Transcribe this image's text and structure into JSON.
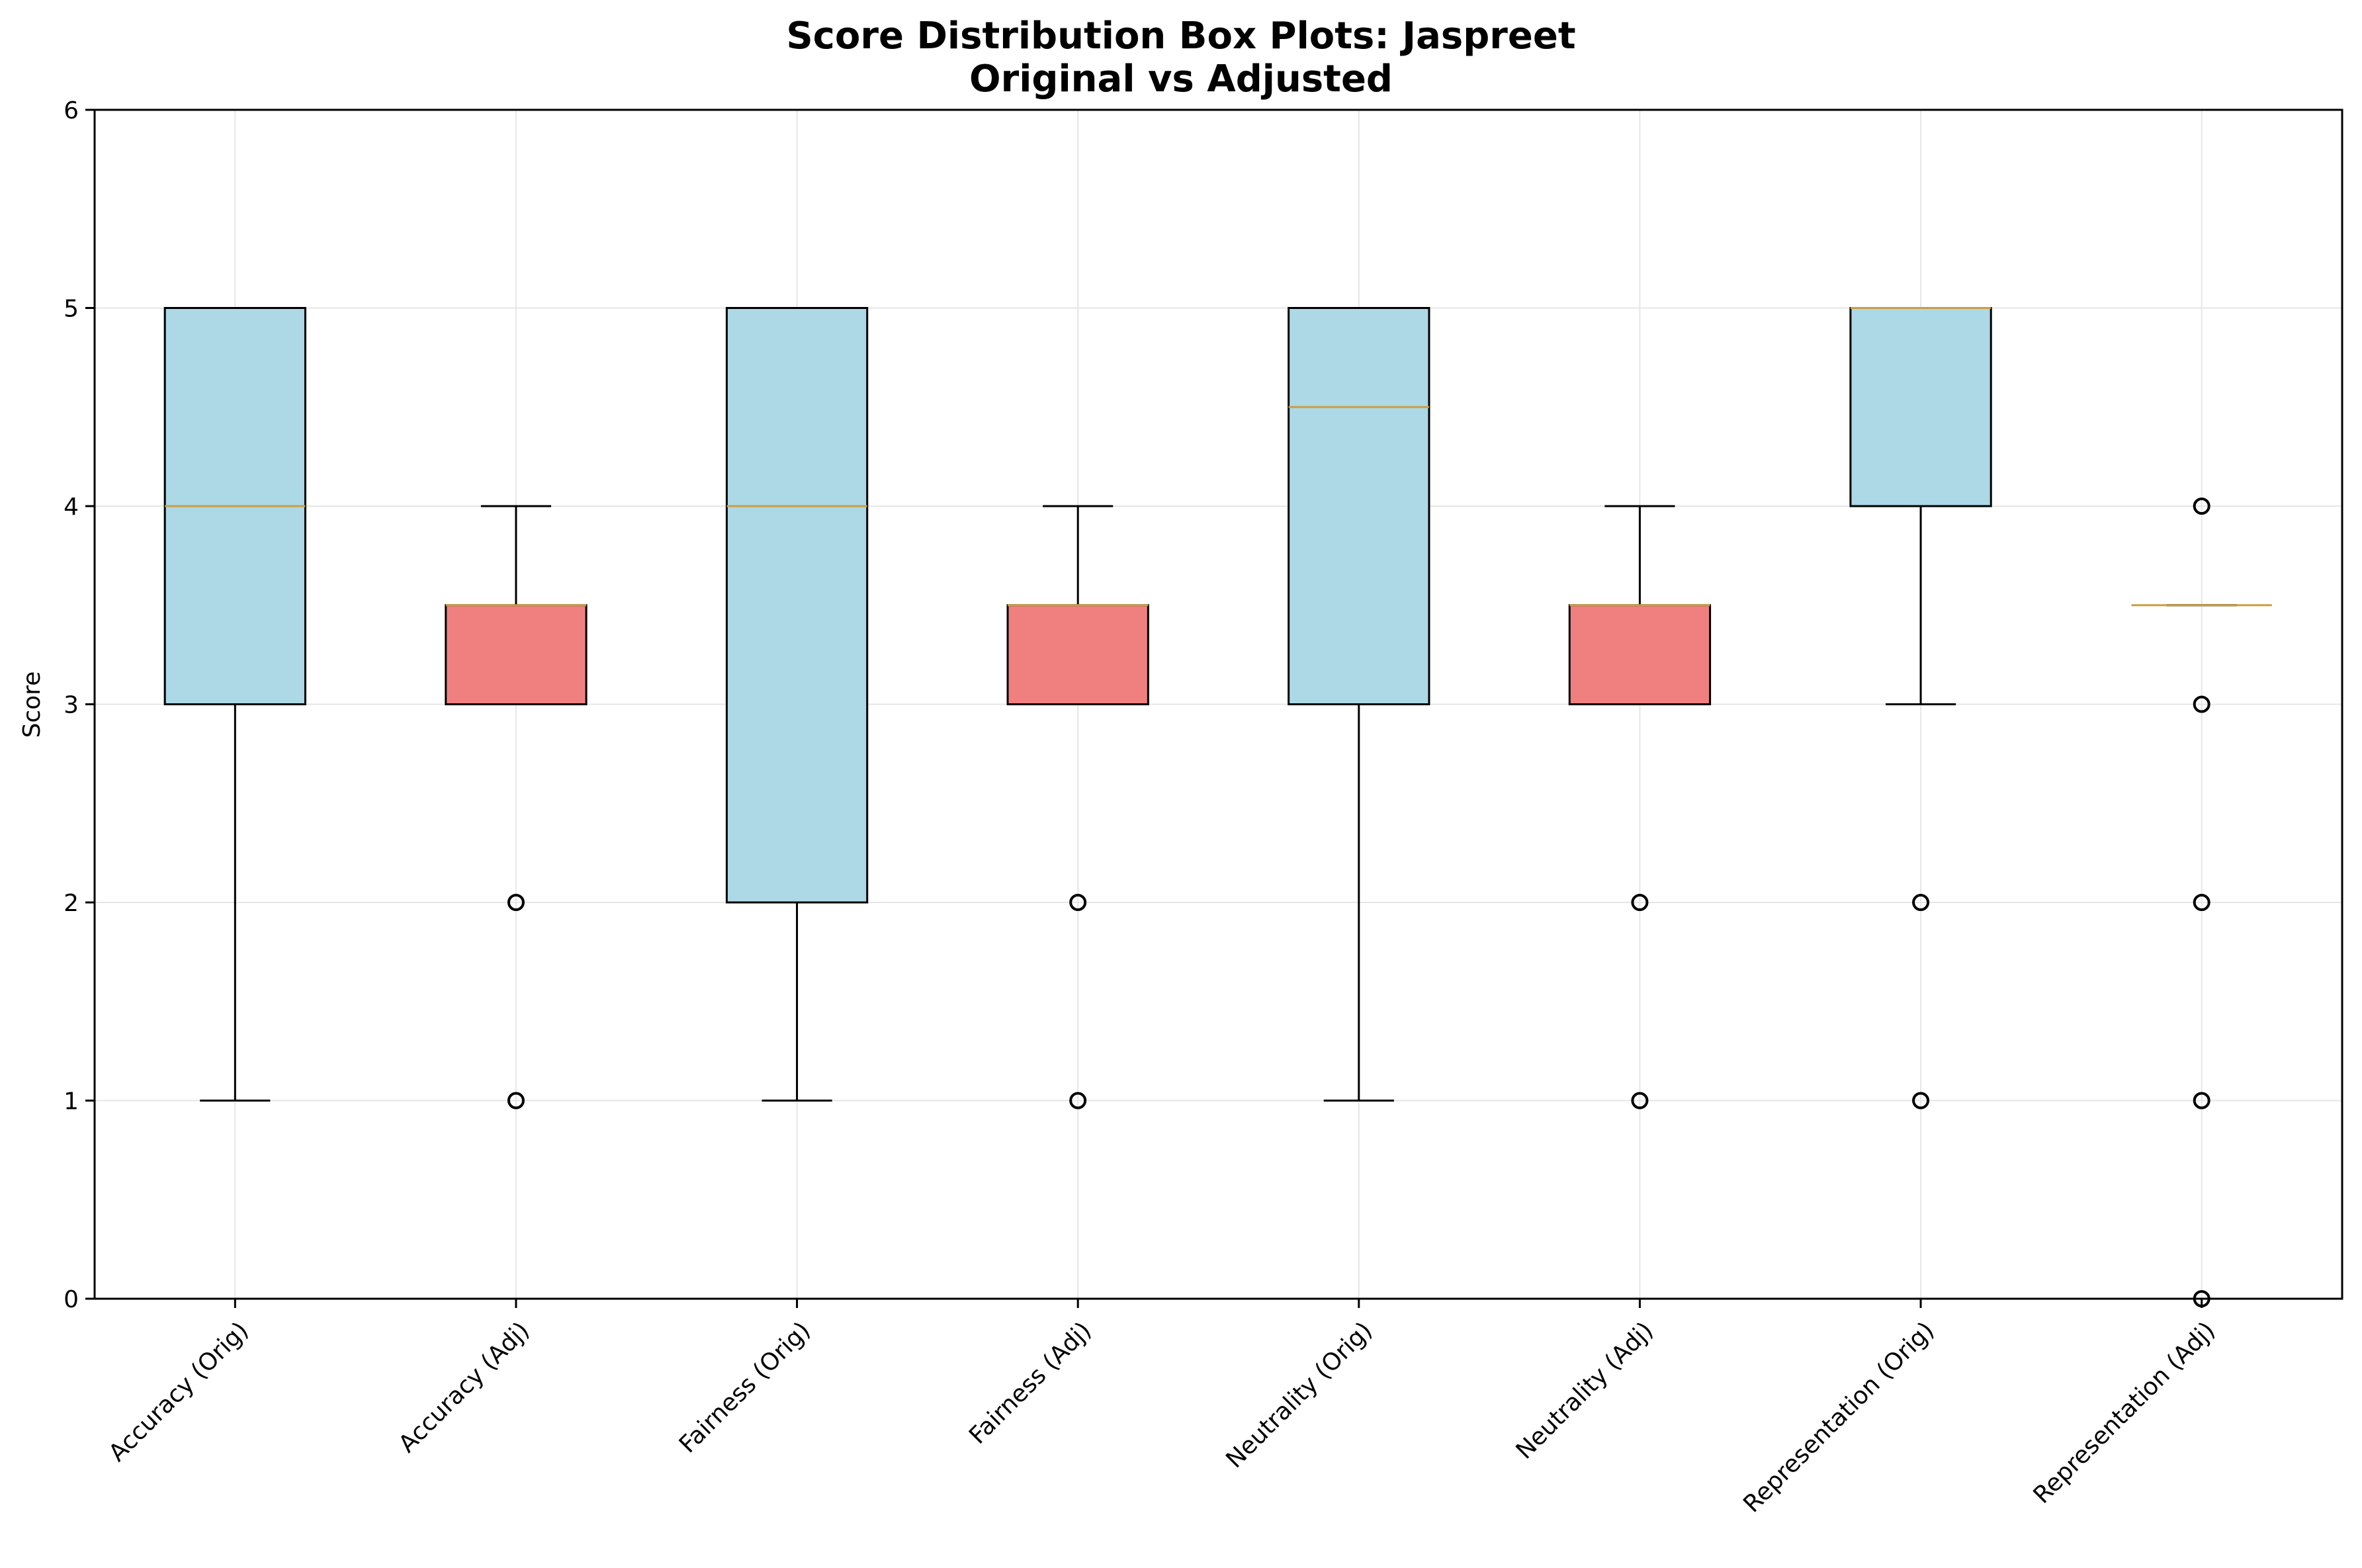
{
  "chart_data": {
    "type": "boxplot",
    "title": "Score Distribution Box Plots: Jaspreet",
    "subtitle": "Original vs Adjusted",
    "xlabel": "",
    "ylabel": "Score",
    "ylim": [
      0,
      6
    ],
    "yticks": [
      0,
      1,
      2,
      3,
      4,
      5,
      6
    ],
    "grid": true,
    "colors": {
      "original": "#add8e6",
      "adjusted": "#f08080",
      "median": "#c8a040",
      "grid": "#e6e6e6",
      "edge": "#000000"
    },
    "categories": [
      "Accuracy (Orig)",
      "Accuracy (Adj)",
      "Fairness (Orig)",
      "Fairness (Adj)",
      "Neutrality (Orig)",
      "Neutrality (Adj)",
      "Representation (Orig)",
      "Representation (Adj)"
    ],
    "boxes": [
      {
        "group": "original",
        "whisker_low": 1,
        "q1": 3,
        "median": 4,
        "q3": 5,
        "whisker_high": 5,
        "outliers": []
      },
      {
        "group": "adjusted",
        "whisker_low": 3,
        "q1": 3,
        "median": 3.5,
        "q3": 3.5,
        "whisker_high": 4,
        "outliers": [
          2,
          1
        ]
      },
      {
        "group": "original",
        "whisker_low": 1,
        "q1": 2,
        "median": 4,
        "q3": 5,
        "whisker_high": 5,
        "outliers": []
      },
      {
        "group": "adjusted",
        "whisker_low": 3,
        "q1": 3,
        "median": 3.5,
        "q3": 3.5,
        "whisker_high": 4,
        "outliers": [
          2,
          1
        ]
      },
      {
        "group": "original",
        "whisker_low": 1,
        "q1": 3,
        "median": 4.5,
        "q3": 5,
        "whisker_high": 5,
        "outliers": []
      },
      {
        "group": "adjusted",
        "whisker_low": 3,
        "q1": 3,
        "median": 3.5,
        "q3": 3.5,
        "whisker_high": 4,
        "outliers": [
          2,
          1
        ]
      },
      {
        "group": "original",
        "whisker_low": 3,
        "q1": 4,
        "median": 5,
        "q3": 5,
        "whisker_high": 5,
        "outliers": [
          2,
          1
        ]
      },
      {
        "group": "adjusted",
        "whisker_low": 3.5,
        "q1": 3.5,
        "median": 3.5,
        "q3": 3.5,
        "whisker_high": 3.5,
        "outliers": [
          4,
          3,
          2,
          1,
          0
        ]
      }
    ]
  }
}
